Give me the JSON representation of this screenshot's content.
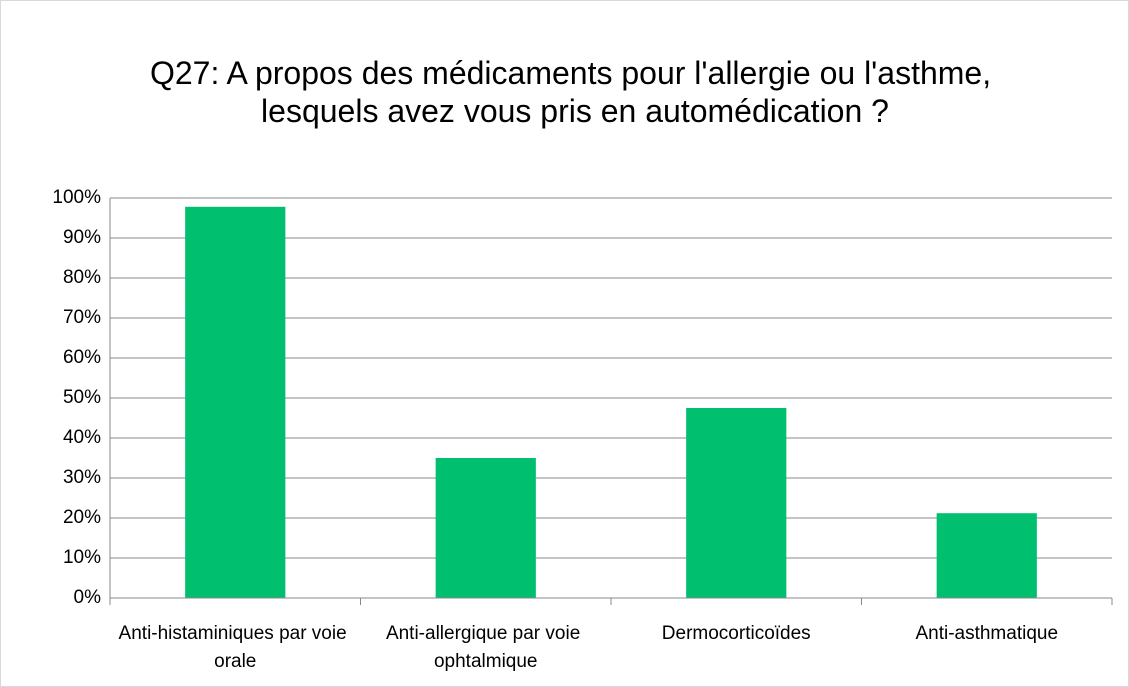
{
  "chart_data": {
    "type": "bar",
    "title": "Q27: A propos des médicaments pour l'allergie ou l'asthme, lesquels avez vous pris en automédication ?",
    "categories": [
      "Anti-histaminiques par voie orale",
      "Anti-allergique par voie ophtalmique",
      "Dermocorticoïdes",
      "Anti-asthmatique"
    ],
    "values": [
      97.8,
      35,
      47.5,
      21.2
    ],
    "color": "#00bf6f",
    "ylim": [
      0,
      100
    ],
    "yticks": [
      {
        "value": 0,
        "label": "0%"
      },
      {
        "value": 10,
        "label": "10%"
      },
      {
        "value": 20,
        "label": "20%"
      },
      {
        "value": 30,
        "label": "30%"
      },
      {
        "value": 40,
        "label": "40%"
      },
      {
        "value": 50,
        "label": "50%"
      },
      {
        "value": 60,
        "label": "60%"
      },
      {
        "value": 70,
        "label": "70%"
      },
      {
        "value": 80,
        "label": "80%"
      },
      {
        "value": 90,
        "label": "90%"
      },
      {
        "value": 100,
        "label": "100%"
      }
    ],
    "grid": true
  }
}
